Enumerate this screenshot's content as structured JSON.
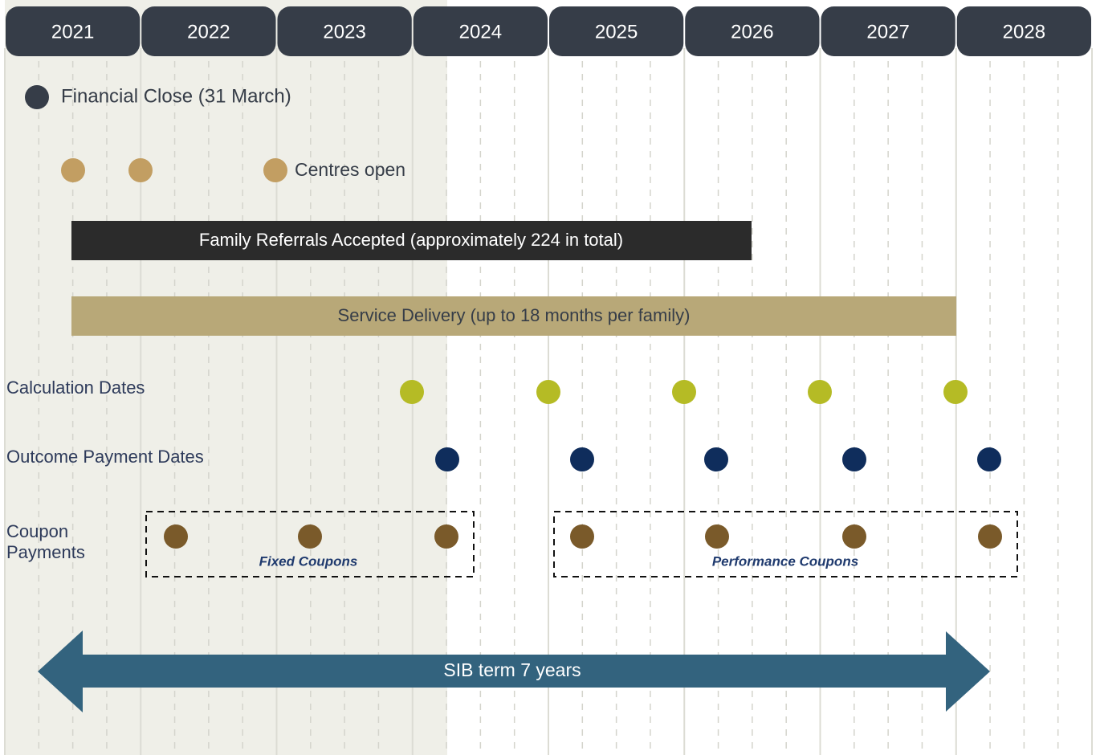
{
  "timeline": {
    "years": [
      "2021",
      "2022",
      "2023",
      "2024",
      "2025",
      "2026",
      "2027",
      "2028"
    ],
    "financial_close": "Financial Close (31 March)",
    "centres_open": "Centres open",
    "referrals": "Family Referrals Accepted (approximately 224 in total)",
    "service_delivery": "Service Delivery (up to 18 months per family)",
    "calculation_dates": "Calculation Dates",
    "outcome_payment_dates": "Outcome Payment Dates",
    "coupon_payments": [
      "Coupon",
      "Payments"
    ],
    "fixed_coupons": "Fixed Coupons",
    "performance_coupons": "Performance Coupons",
    "sib_term": "SIB term 7 years"
  }
}
